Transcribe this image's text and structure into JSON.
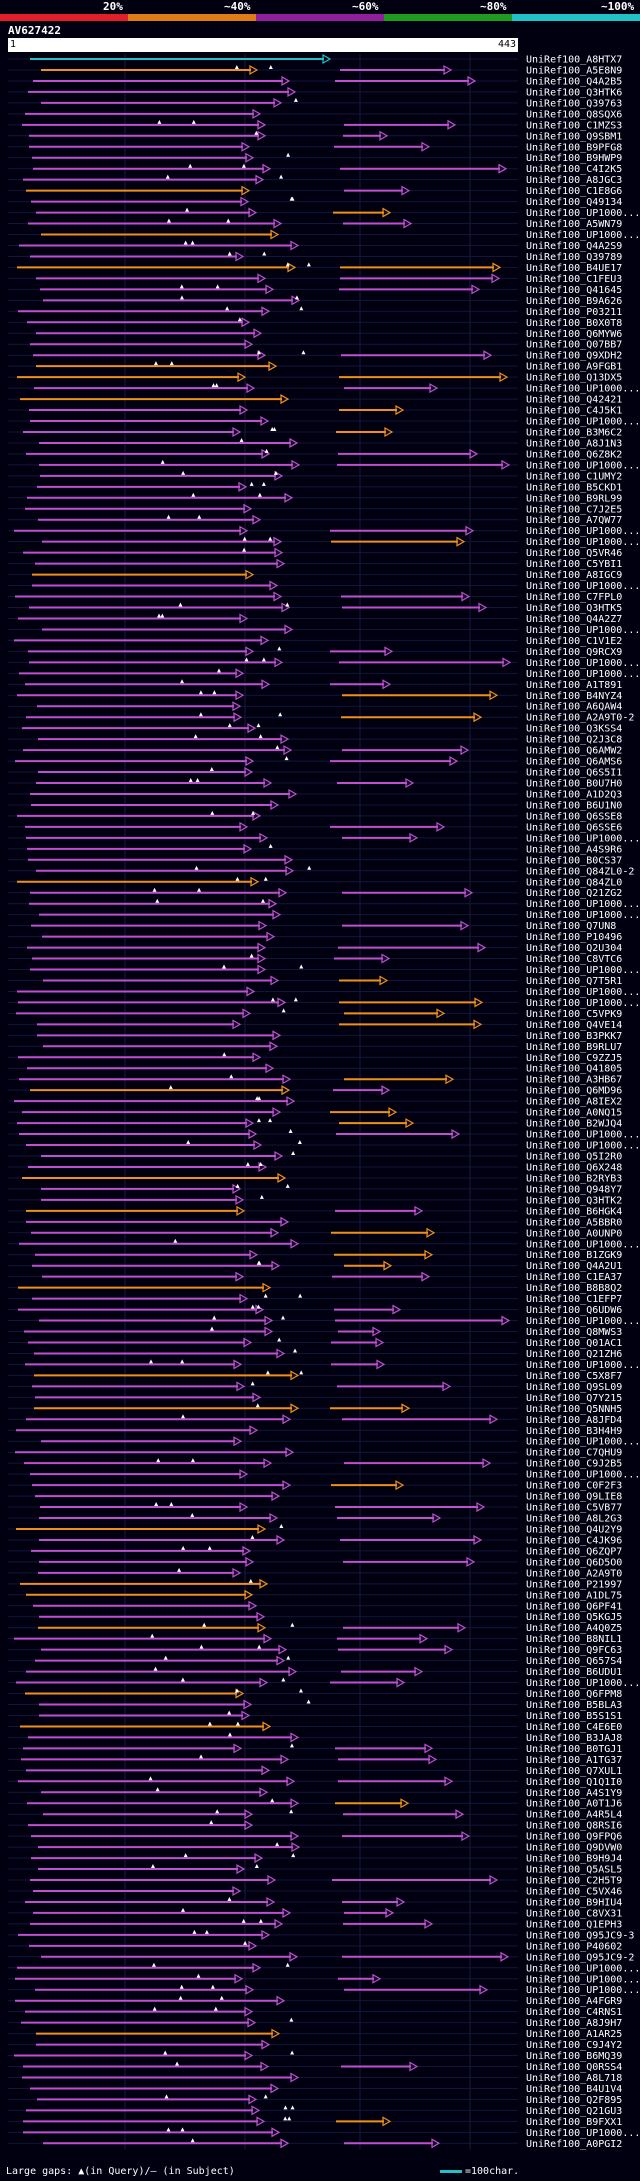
{
  "chart_data": {
    "type": "alignment-map",
    "title": "AV627422",
    "query_length": 443,
    "axis_start_label": "1",
    "axis_end_label": "443",
    "identity_scale": [
      {
        "label": "20%",
        "color": "#e01f2b"
      },
      {
        "label": "~40%",
        "color": "#e07b18"
      },
      {
        "label": "~60%",
        "color": "#8f1f9c"
      },
      {
        "label": "~80%",
        "color": "#1f9c1f"
      },
      {
        "label": "~100%",
        "color": "#21c1c8"
      }
    ],
    "hits": [
      "UniRef100_A8HTX7",
      "UniRef100_A5E8N9",
      "UniRef100_Q4A2B5",
      "UniRef100_Q3HTK6",
      "UniRef100_Q39763",
      "UniRef100_Q8SQX6",
      "UniRef100_C1MZS3",
      "UniRef100_Q9SBM1",
      "UniRef100_B9PFG8",
      "UniRef100_B9HWP9",
      "UniRef100_C4I2K5",
      "UniRef100_A8JGC3",
      "UniRef100_C1E8G6",
      "UniRef100_Q49134",
      "UniRef100_UP1000...",
      "UniRef100_A5WN79",
      "UniRef100_UP1000...",
      "UniRef100_Q4A2S9",
      "UniRef100_Q39789",
      "UniRef100_B4UE17",
      "UniRef100_C1FEU3",
      "UniRef100_Q41645",
      "UniRef100_B9A626",
      "UniRef100_P03211",
      "UniRef100_B0X0T8",
      "UniRef100_Q6MYW6",
      "UniRef100_Q07BB7",
      "UniRef100_Q9XDH2",
      "UniRef100_A9FGB1",
      "UniRef100_Q13DX5",
      "UniRef100_UP1000...",
      "UniRef100_Q42421",
      "UniRef100_C4J5K1",
      "UniRef100_UP1000...",
      "UniRef100_B3M6C2",
      "UniRef100_A8J1N3",
      "UniRef100_Q6Z8K2",
      "UniRef100_UP1000...",
      "UniRef100_C1UMY2",
      "UniRef100_B5CKD1",
      "UniRef100_B9RL99",
      "UniRef100_C7J2E5",
      "UniRef100_A7QW77",
      "UniRef100_UP1000...",
      "UniRef100_UP1000...",
      "UniRef100_Q5VR46",
      "UniRef100_C5YBI1",
      "UniRef100_A8IGC9",
      "UniRef100_UP1000...",
      "UniRef100_C7FPL0",
      "UniRef100_Q3HTK5",
      "UniRef100_Q4A2Z7",
      "UniRef100_UP1000...",
      "UniRef100_C1V1E2",
      "UniRef100_Q9RCX9",
      "UniRef100_UP1000...",
      "UniRef100_UP1000...",
      "UniRef100_A1T891",
      "UniRef100_B4NYZ4",
      "UniRef100_A6QAW4",
      "UniRef100_A2A9T0-2",
      "UniRef100_Q3KSS4",
      "UniRef100_Q2J3C8",
      "UniRef100_Q6AMW2",
      "UniRef100_Q6AMS6",
      "UniRef100_Q6S5I1",
      "UniRef100_B0U7H0",
      "UniRef100_A1D2Q3",
      "UniRef100_B6U1N0",
      "UniRef100_Q6SSE8",
      "UniRef100_Q6SSE6",
      "UniRef100_UP1000...",
      "UniRef100_A4S9R6",
      "UniRef100_B0CS37",
      "UniRef100_Q84ZL0-2",
      "UniRef100_Q84ZL0",
      "UniRef100_Q21ZG2",
      "UniRef100_UP1000...",
      "UniRef100_UP1000...",
      "UniRef100_Q7UN8",
      "UniRef100_P10496",
      "UniRef100_Q2U304",
      "UniRef100_C8VTC6",
      "UniRef100_UP1000...",
      "UniRef100_Q7T5R1",
      "UniRef100_UP1000...",
      "UniRef100_UP1000...",
      "UniRef100_C5VPK9",
      "UniRef100_Q4VE14",
      "UniRef100_B3PKK7",
      "UniRef100_B9RLU7",
      "UniRef100_C9ZZJ5",
      "UniRef100_Q41805",
      "UniRef100_A3HB67",
      "UniRef100_Q6MD96",
      "UniRef100_A8IEX2",
      "UniRef100_A0NQ15",
      "UniRef100_B2WJQ4",
      "UniRef100_UP1000...",
      "UniRef100_UP1000...",
      "UniRef100_Q5I2R0",
      "UniRef100_Q6X248",
      "UniRef100_B2RYB3",
      "UniRef100_Q948Y7",
      "UniRef100_Q3HTK2",
      "UniRef100_B6HGK4",
      "UniRef100_A5BBR0",
      "UniRef100_A0UNP0",
      "UniRef100_UP1000...",
      "UniRef100_B1ZGK9",
      "UniRef100_Q4A2U1",
      "UniRef100_C1EA37",
      "UniRef100_B8B8Q2",
      "UniRef100_C1EFP7",
      "UniRef100_Q6UDW6",
      "UniRef100_UP1000...",
      "UniRef100_Q8MWS3",
      "UniRef100_Q01AC1",
      "UniRef100_Q21ZH6",
      "UniRef100_UP1000...",
      "UniRef100_C5X8F7",
      "UniRef100_Q9SL09",
      "UniRef100_Q7Y215",
      "UniRef100_Q5NNH5",
      "UniRef100_A8JFD4",
      "UniRef100_B3H4H9",
      "UniRef100_UP1000...",
      "UniRef100_C7QHU9",
      "UniRef100_C9J2B5",
      "UniRef100_UP1000...",
      "UniRef100_C0F2F3",
      "UniRef100_Q9LIE8",
      "UniRef100_C5VB77",
      "UniRef100_A8L2G3",
      "UniRef100_Q4U2Y9",
      "UniRef100_C4JK96",
      "UniRef100_Q6ZQP7",
      "UniRef100_Q6D5O0",
      "UniRef100_A2A9T0",
      "UniRef100_P21997",
      "UniRef100_A1DL75",
      "UniRef100_Q6PF41",
      "UniRef100_Q5KGJ5",
      "UniRef100_A4Q0Z5",
      "UniRef100_B8NIL1",
      "UniRef100_Q9FC63",
      "UniRef100_Q657S4",
      "UniRef100_B6UDU1",
      "UniRef100_UP1000...",
      "UniRef100_Q6FPM8",
      "UniRef100_B5BLA3",
      "UniRef100_B5S1S1",
      "UniRef100_C4E6E0",
      "UniRef100_B3JAJ8",
      "UniRef100_B0TGJ1",
      "UniRef100_A1TG37",
      "UniRef100_Q7XUL1",
      "UniRef100_Q1Q1I0",
      "UniRef100_A4S1Y9",
      "UniRef100_A0T1J6",
      "UniRef100_A4R5L4",
      "UniRef100_Q8RSI6",
      "UniRef100_Q9FPQ6",
      "UniRef100_Q9DVW0",
      "UniRef100_B9H9J4",
      "UniRef100_Q5ASL5",
      "UniRef100_C2H5T9",
      "UniRef100_C5VX46",
      "UniRef100_B9HIU4",
      "UniRef100_C8VX31",
      "UniRef100_Q1EPH3",
      "UniRef100_Q95JC9-3",
      "UniRef100_P40602",
      "UniRef100_Q95JC9-2",
      "UniRef100_UP1000...",
      "UniRef100_UP1000...",
      "UniRef100_UP1000...",
      "UniRef100_A4FGR9",
      "UniRef100_C4RNS1",
      "UniRef100_A8J9H7",
      "UniRef100_A1AR25",
      "UniRef100_C9J4Y2",
      "UniRef100_B6MQ39",
      "UniRef100_Q0RSS4",
      "UniRef100_A8L718",
      "UniRef100_B4U1V4",
      "UniRef100_Q2F895",
      "UniRef100_Q21GU3",
      "UniRef100_B9FXX1",
      "UniRef100_UP1000...",
      "UniRef100_A0PGI2"
    ],
    "legend_gaps_label": "Large gaps: ▲(in Query)/— (in Subject)",
    "legend_scale_label": "=100char."
  }
}
